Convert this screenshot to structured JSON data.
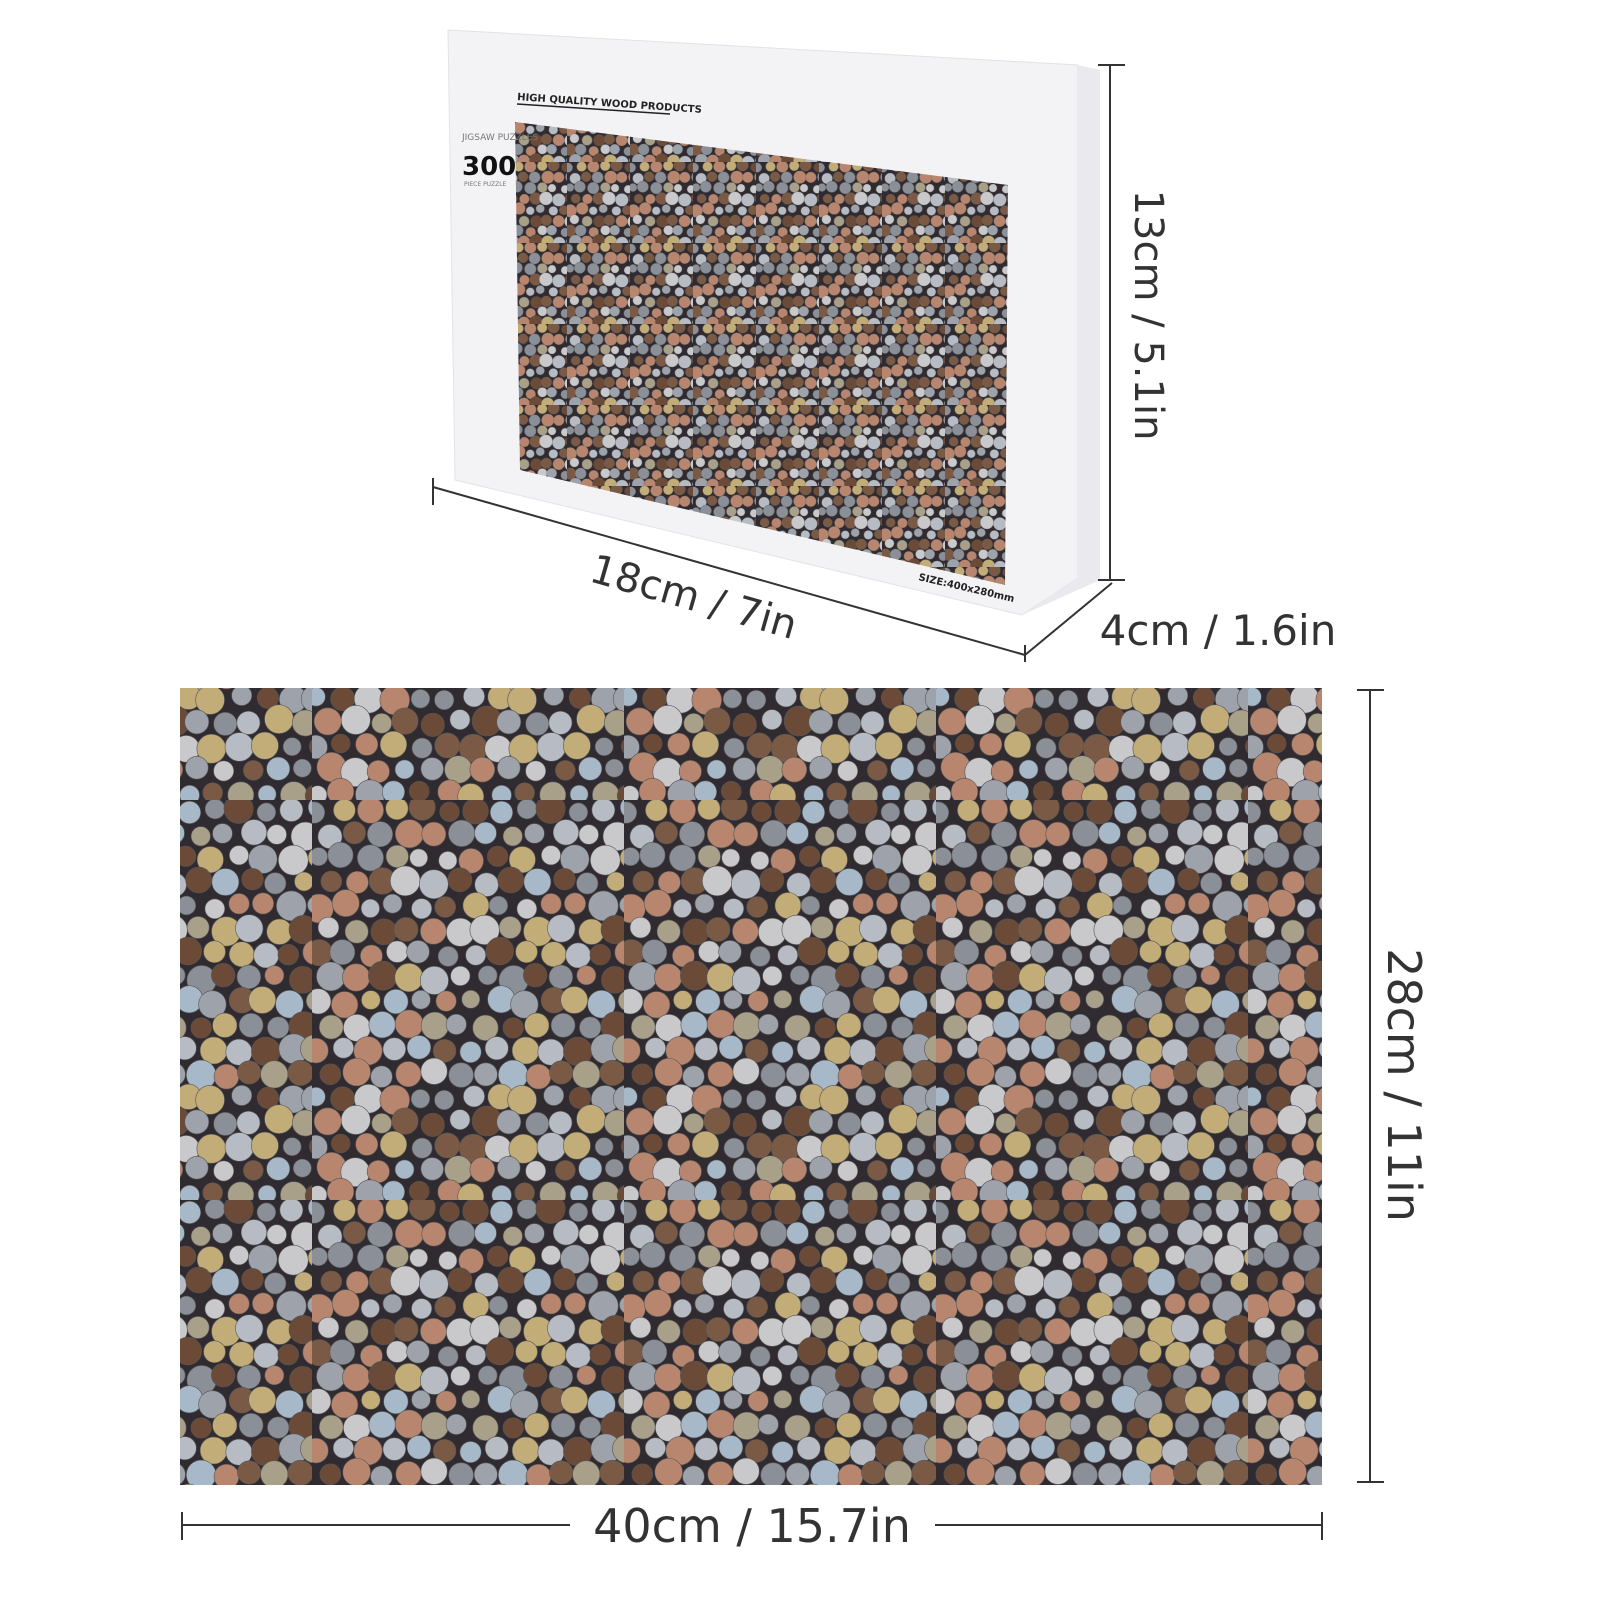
{
  "box": {
    "brand_line": "HIGH QUALITY WOOD PRODUCTS",
    "category": "JIGSAW PUZZLES",
    "piece_count": "300",
    "piece_label": "PIECE PUZZLE",
    "size_label": "SIZE:400x280mm"
  },
  "dimensions": {
    "box_width": "18cm / 7in",
    "box_height": "13cm / 5.1in",
    "box_depth": "4cm / 1.6in",
    "puzzle_width": "40cm / 15.7in",
    "puzzle_height": "28cm / 11in"
  },
  "colors": {
    "background": "#2f2b30",
    "coin_palette": [
      "#9ea3ab",
      "#b7bcc4",
      "#8a8f98",
      "#a7b8c8",
      "#7b5a45",
      "#6b4a37",
      "#b8866e",
      "#c2ad78",
      "#a9a08a",
      "#c9c9cc"
    ]
  }
}
